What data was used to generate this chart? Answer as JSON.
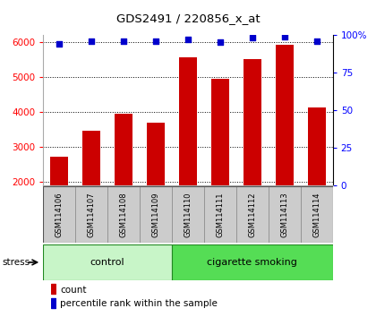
{
  "title": "GDS2491 / 220856_x_at",
  "samples": [
    "GSM114106",
    "GSM114107",
    "GSM114108",
    "GSM114109",
    "GSM114110",
    "GSM114111",
    "GSM114112",
    "GSM114113",
    "GSM114114"
  ],
  "counts": [
    2720,
    3450,
    3960,
    3700,
    5560,
    4950,
    5500,
    5920,
    4130
  ],
  "percentiles": [
    94,
    96,
    96,
    96,
    97,
    95,
    98,
    99,
    96
  ],
  "groups": [
    {
      "label": "control",
      "start": 0,
      "end": 4,
      "color": "#c8f5c8"
    },
    {
      "label": "cigarette smoking",
      "start": 4,
      "end": 9,
      "color": "#55dd55"
    }
  ],
  "bar_color": "#cc0000",
  "dot_color": "#0000cc",
  "ylim_left": [
    1900,
    6200
  ],
  "ylim_right": [
    0,
    100
  ],
  "yticks_left": [
    2000,
    3000,
    4000,
    5000,
    6000
  ],
  "yticks_right": [
    0,
    25,
    50,
    75,
    100
  ],
  "yticklabels_right": [
    "0",
    "25",
    "50",
    "75",
    "100%"
  ],
  "stress_label": "stress",
  "bar_width": 0.55,
  "tick_area_color": "#cccccc",
  "pct_scale_min": 0,
  "pct_scale_max": 100
}
